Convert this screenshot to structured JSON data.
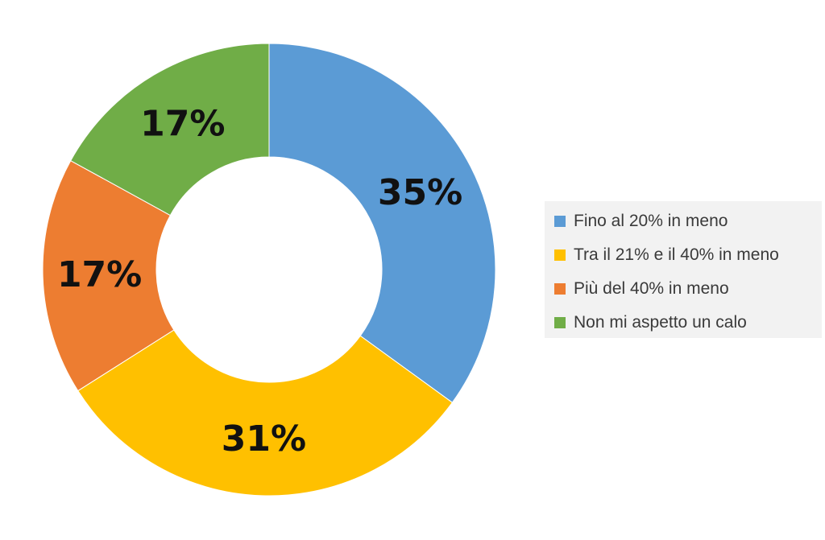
{
  "chart_data": {
    "type": "pie",
    "donut": true,
    "categories": [
      "Fino al 20% in meno",
      "Tra il 21% e il 40% in meno",
      "Più del 40% in meno",
      "Non mi aspetto un calo"
    ],
    "values": [
      35,
      31,
      17,
      17
    ],
    "data_labels": [
      "35%",
      "31%",
      "17%",
      "17%"
    ],
    "colors": [
      "#5b9bd5",
      "#ffc000",
      "#ed7d31",
      "#70ad47"
    ],
    "legend_position": "right"
  }
}
